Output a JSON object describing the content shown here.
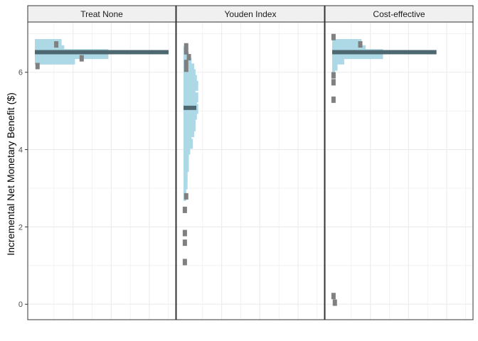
{
  "chart_data": {
    "type": "bar",
    "orientation": "horizontal",
    "ylabel": "Incremental Net Monetary Benefit ($)",
    "ylim": [
      -0.4,
      7.3
    ],
    "yticks": [
      0,
      2,
      4,
      6
    ],
    "grid": true,
    "colors": {
      "dist": "#ADD8E6",
      "mark": "#808080",
      "center": "#4D6870",
      "strip": "#F0F0F0",
      "grid": "#EBEBEB"
    },
    "panels": [
      {
        "title": "Treat None",
        "center": 6.52,
        "dist": [
          {
            "y": 6.73,
            "w": 0.2
          },
          {
            "y": 6.57,
            "w": 0.22
          },
          {
            "y": 6.47,
            "w": 0.55
          },
          {
            "y": 6.33,
            "w": 0.3
          }
        ],
        "marks": [
          {
            "y": 6.73,
            "w": 0.16
          },
          {
            "y": 6.37,
            "w": 0.35
          },
          {
            "y": 6.17,
            "w": 0.02
          }
        ]
      },
      {
        "title": "Youden Index",
        "center": 5.08,
        "dist": [
          {
            "y": 6.55,
            "w": 0.03
          },
          {
            "y": 6.4,
            "w": 0.04
          },
          {
            "y": 6.25,
            "w": 0.06
          },
          {
            "y": 6.1,
            "w": 0.08
          },
          {
            "y": 5.95,
            "w": 0.09
          },
          {
            "y": 5.8,
            "w": 0.1
          },
          {
            "y": 5.65,
            "w": 0.11
          },
          {
            "y": 5.5,
            "w": 0.09
          },
          {
            "y": 5.35,
            "w": 0.11
          },
          {
            "y": 5.2,
            "w": 0.1
          },
          {
            "y": 5.05,
            "w": 0.11
          },
          {
            "y": 4.9,
            "w": 0.1
          },
          {
            "y": 4.75,
            "w": 0.09
          },
          {
            "y": 4.6,
            "w": 0.09
          },
          {
            "y": 4.45,
            "w": 0.08
          },
          {
            "y": 4.3,
            "w": 0.06
          },
          {
            "y": 4.15,
            "w": 0.07
          },
          {
            "y": 4.0,
            "w": 0.05
          },
          {
            "y": 3.85,
            "w": 0.04
          },
          {
            "y": 3.7,
            "w": 0.04
          },
          {
            "y": 3.55,
            "w": 0.04
          },
          {
            "y": 3.4,
            "w": 0.03
          },
          {
            "y": 3.25,
            "w": 0.03
          },
          {
            "y": 3.1,
            "w": 0.03
          },
          {
            "y": 2.95,
            "w": 0.02
          },
          {
            "y": 2.8,
            "w": 0.02
          }
        ],
        "marks": [
          {
            "y": 6.68,
            "w": 0.02
          },
          {
            "y": 6.55,
            "w": 0.02
          },
          {
            "y": 6.4,
            "w": 0.04
          },
          {
            "y": 6.25,
            "w": 0.02
          },
          {
            "y": 6.1,
            "w": 0.02
          },
          {
            "y": 2.8,
            "w": 0.02
          },
          {
            "y": 2.45,
            "w": 0.01
          },
          {
            "y": 1.85,
            "w": 0.01
          },
          {
            "y": 1.6,
            "w": 0.01
          },
          {
            "y": 1.1,
            "w": 0.01
          }
        ]
      },
      {
        "title": "Cost-effective",
        "center": 6.52,
        "dist": [
          {
            "y": 6.73,
            "w": 0.22
          },
          {
            "y": 6.57,
            "w": 0.25
          },
          {
            "y": 6.47,
            "w": 0.38
          },
          {
            "y": 6.33,
            "w": 0.09
          },
          {
            "y": 6.17,
            "w": 0.04
          },
          {
            "y": 6.0,
            "w": 0.02
          }
        ],
        "marks": [
          {
            "y": 6.73,
            "w": 0.21
          },
          {
            "y": 6.92,
            "w": 0.01
          },
          {
            "y": 5.93,
            "w": 0.01
          },
          {
            "y": 5.75,
            "w": 0.01
          },
          {
            "y": 5.3,
            "w": 0.01
          },
          {
            "y": 0.05,
            "w": 0.02
          },
          {
            "y": 0.22,
            "w": 0.01
          }
        ]
      }
    ]
  }
}
